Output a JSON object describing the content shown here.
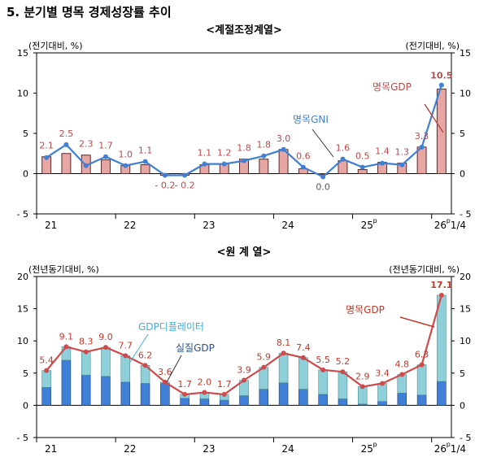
{
  "page_title": "5. 분기별 명목 경제성장률 추이",
  "chart_data": [
    {
      "type": "bar",
      "title": "<계절조정계열>",
      "ylabel_left": "(전기대비, %)",
      "ylabel_right": "(전기대비, %)",
      "ylim": [
        -5,
        15
      ],
      "yticks": [
        "-5",
        "0",
        "5",
        "10",
        "15"
      ],
      "year_labels": [
        "21",
        "22",
        "23",
        "24",
        "25",
        "26"
      ],
      "year_label_suffix": "p",
      "last_quarter_label": "1/4",
      "grid": false,
      "colors": {
        "bar": "#e5a6a4",
        "bar_edge": "#5a2a2a",
        "line": "#3f7fd6",
        "bar_label": "#b94a48",
        "line_label_name": "#3f7fd6"
      },
      "series": [
        {
          "name": "명목GDP",
          "kind": "bar",
          "values": [
            2.1,
            2.5,
            2.3,
            1.7,
            1.0,
            1.1,
            -0.2,
            -0.2,
            1.1,
            1.2,
            1.8,
            1.8,
            3.0,
            0.6,
            0.0,
            1.6,
            0.5,
            1.4,
            1.3,
            3.3,
            10.5
          ],
          "labels": [
            "2.1",
            "2.5",
            "2.3",
            "1.7",
            "1.0",
            "1.1",
            "- 0.2",
            "- 0.2",
            "1.1",
            "1.2",
            "1.8",
            "1.8",
            "3.0",
            "0.6",
            "0.0",
            "1.6",
            "0.5",
            "1.4",
            "1.3",
            "3.3",
            "10.5"
          ]
        },
        {
          "name": "명목GNI",
          "kind": "line",
          "values": [
            2.0,
            3.6,
            1.0,
            2.1,
            1.0,
            1.5,
            -0.2,
            -0.2,
            1.2,
            1.2,
            1.6,
            2.2,
            3.0,
            0.8,
            -0.4,
            1.8,
            0.8,
            1.3,
            1.1,
            3.3,
            11.0
          ]
        }
      ]
    },
    {
      "type": "bar",
      "title": "<원 계 열>",
      "ylabel_left": "(전년동기대비, %)",
      "ylabel_right": "(전년동기대비, %)",
      "ylim": [
        -5,
        20
      ],
      "yticks": [
        "-5",
        "0",
        "5",
        "10",
        "15",
        "20"
      ],
      "year_labels": [
        "21",
        "22",
        "23",
        "24",
        "25",
        "26"
      ],
      "year_label_suffix": "p",
      "last_quarter_label": "1/4",
      "grid": false,
      "colors": {
        "real": "#3f7fd6",
        "deflator": "#8fcfd9",
        "line": "#d04a4a",
        "line_label": "#c0392b",
        "real_label_name": "#2d4f8f",
        "deflator_label_name": "#3aaed8"
      },
      "series": [
        {
          "name": "실질GDP",
          "kind": "stacked_bar",
          "values": [
            2.8,
            7.0,
            4.7,
            4.5,
            3.6,
            3.4,
            3.4,
            1.1,
            1.0,
            0.8,
            1.5,
            2.5,
            3.5,
            2.5,
            1.7,
            1.0,
            0.2,
            0.6,
            1.9,
            1.6,
            3.7
          ]
        },
        {
          "name": "GDP디플레이터",
          "kind": "stacked_bar",
          "values": [
            2.6,
            2.1,
            3.6,
            4.5,
            4.1,
            2.8,
            0.2,
            0.6,
            1.0,
            0.9,
            2.4,
            3.4,
            4.6,
            4.9,
            3.8,
            4.2,
            2.7,
            2.8,
            2.9,
            4.7,
            13.4
          ]
        },
        {
          "name": "명목GDP",
          "kind": "line",
          "values": [
            5.4,
            9.1,
            8.3,
            9.0,
            7.7,
            6.2,
            3.6,
            1.7,
            2.0,
            1.7,
            3.9,
            5.9,
            8.1,
            7.4,
            5.5,
            5.2,
            2.9,
            3.4,
            4.8,
            6.3,
            17.1
          ],
          "labels": [
            "5.4",
            "9.1",
            "8.3",
            "9.0",
            "7.7",
            "6.2",
            "3.6",
            "1.7",
            "2.0",
            "1.7",
            "3.9",
            "5.9",
            "8.1",
            "7.4",
            "5.5",
            "5.2",
            "2.9",
            "3.4",
            "4.8",
            "6.3",
            "17.1"
          ]
        }
      ]
    }
  ]
}
